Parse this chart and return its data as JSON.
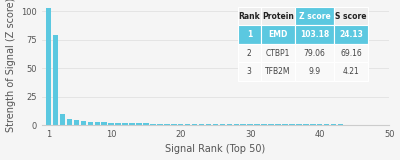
{
  "bar_color": "#5bc8e0",
  "background_color": "#f5f5f5",
  "xlabel": "Signal Rank (Top 50)",
  "ylabel": "Strength of Signal (Z score)",
  "xlim": [
    0,
    50
  ],
  "ylim": [
    0,
    105
  ],
  "yticks": [
    0,
    25,
    50,
    75,
    100
  ],
  "xticks": [
    1,
    10,
    20,
    30,
    40,
    50
  ],
  "bar_values": [
    103.18,
    79.06,
    9.9,
    5.5,
    4.2,
    3.5,
    3.0,
    2.7,
    2.4,
    2.1,
    1.9,
    1.7,
    1.6,
    1.5,
    1.4,
    1.3,
    1.25,
    1.2,
    1.15,
    1.1,
    1.05,
    1.0,
    0.95,
    0.9,
    0.87,
    0.84,
    0.81,
    0.78,
    0.75,
    0.72,
    0.69,
    0.67,
    0.65,
    0.63,
    0.61,
    0.59,
    0.57,
    0.55,
    0.53,
    0.51,
    0.49,
    0.48,
    0.47,
    0.46,
    0.45,
    0.44,
    0.43,
    0.42,
    0.41,
    0.4
  ],
  "table_data": [
    [
      "Rank",
      "Protein",
      "Z score",
      "S score"
    ],
    [
      "1",
      "EMD",
      "103.18",
      "24.13"
    ],
    [
      "2",
      "CTBP1",
      "79.06",
      "69.16"
    ],
    [
      "3",
      "TFB2M",
      "9.9",
      "4.21"
    ]
  ],
  "table_highlight_col": 2,
  "table_highlight_color": "#5bc8e0",
  "table_row1_color": "#5bc8e0",
  "table_header_bg": "#f0f0f0",
  "table_text_light": "#ffffff",
  "table_text_dark": "#444444",
  "table_text_bold": "#222222"
}
